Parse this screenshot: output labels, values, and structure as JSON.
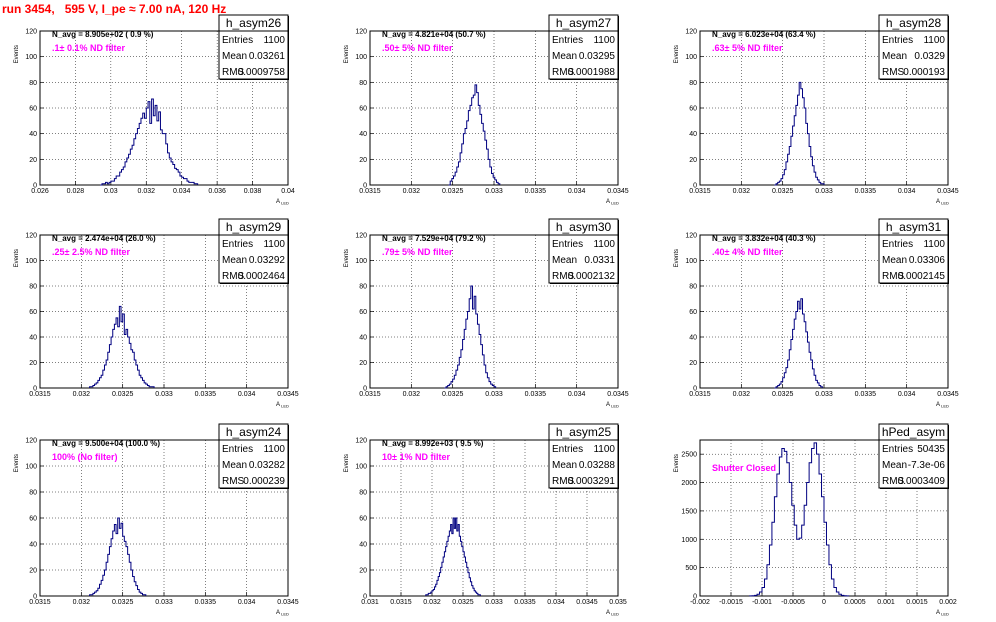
{
  "title": "run 3454,   595 V, I_pe ≈ 7.00 nA, 120 Hz",
  "stat_labels": {
    "entries": "Entries",
    "mean": "Mean",
    "rms": "RMS"
  },
  "xlabel": "A",
  "xlabel_sub": "LED",
  "ylabel": "Events",
  "colors": {
    "title": "#ff0000",
    "histogram": "#000080",
    "filter_text": "#ff00ff"
  },
  "grid": true,
  "chart_data": [
    {
      "type": "histogram",
      "name": "h_asym26",
      "entries": "1100",
      "mean": "0.03261",
      "rms": "0.0009758",
      "n_avg": "N_avg = 8.905e+02 ( 0.9 %)",
      "filter": ".1± 0.1% ND filter",
      "xlim": [
        0.026,
        0.04
      ],
      "ylim": [
        0,
        120
      ],
      "xticks": [
        "0.026",
        "0.028",
        "0.03",
        "0.032",
        "0.034",
        "0.036",
        "0.038",
        "0.04"
      ],
      "yticks": [
        "0",
        "20",
        "40",
        "60",
        "80",
        "100",
        "120"
      ],
      "bin_start": 0.0294,
      "bin_width": 0.0001,
      "counts": [
        0,
        1,
        1,
        2,
        1,
        2,
        3,
        3,
        5,
        7,
        7,
        10,
        12,
        14,
        18,
        21,
        24,
        28,
        31,
        36,
        40,
        44,
        48,
        52,
        56,
        52,
        60,
        65,
        48,
        67,
        54,
        62,
        50,
        57,
        43,
        40,
        40,
        32,
        25,
        21,
        18,
        16,
        13,
        12,
        10,
        7,
        6,
        5,
        5,
        3,
        2,
        2,
        2,
        1,
        1
      ]
    },
    {
      "type": "histogram",
      "name": "h_asym27",
      "entries": "1100",
      "mean": "0.03295",
      "rms": "0.0001988",
      "n_avg": "N_avg = 4.821e+04 (50.7 %)",
      "filter": ".50± 5% ND filter",
      "xlim": [
        0.0315,
        0.0345
      ],
      "ylim": [
        0,
        120
      ],
      "xticks": [
        "0.0315",
        "0.032",
        "0.0325",
        "0.033",
        "0.0335",
        "0.034",
        "0.0345"
      ],
      "yticks": [
        "0",
        "20",
        "40",
        "60",
        "80",
        "100",
        "120"
      ],
      "bin_start": 0.03245,
      "bin_width": 2e-05,
      "counts": [
        0,
        3,
        5,
        7,
        10,
        14,
        18,
        25,
        32,
        40,
        44,
        50,
        58,
        62,
        68,
        70,
        78,
        72,
        62,
        55,
        48,
        42,
        35,
        28,
        20,
        14,
        9,
        6,
        4,
        2,
        1
      ]
    },
    {
      "type": "histogram",
      "name": "h_asym28",
      "entries": "1100",
      "mean": "0.0329",
      "rms": "0.000193",
      "n_avg": "N_avg = 6.023e+04 (63.4 %)",
      "filter": ".63± 5% ND filter",
      "xlim": [
        0.0315,
        0.0345
      ],
      "ylim": [
        0,
        120
      ],
      "xticks": [
        "0.0315",
        "0.032",
        "0.0325",
        "0.033",
        "0.0335",
        "0.034",
        "0.0345"
      ],
      "yticks": [
        "0",
        "20",
        "40",
        "60",
        "80",
        "100",
        "120"
      ],
      "bin_start": 0.0324,
      "bin_width": 2e-05,
      "counts": [
        0,
        1,
        2,
        3,
        5,
        8,
        12,
        18,
        24,
        30,
        38,
        46,
        54,
        62,
        70,
        80,
        75,
        68,
        60,
        48,
        40,
        30,
        22,
        15,
        10,
        6,
        4,
        2,
        1,
        1
      ]
    },
    {
      "type": "histogram",
      "name": "h_asym29",
      "entries": "1100",
      "mean": "0.03292",
      "rms": "0.0002464",
      "n_avg": "N_avg = 2.474e+04 (26.0 %)",
      "filter": ".25± 2.5% ND filter",
      "xlim": [
        0.0315,
        0.0345
      ],
      "ylim": [
        0,
        120
      ],
      "xticks": [
        "0.0315",
        "0.032",
        "0.0325",
        "0.033",
        "0.0335",
        "0.034",
        "0.0345"
      ],
      "yticks": [
        "0",
        "20",
        "40",
        "60",
        "80",
        "100",
        "120"
      ],
      "bin_start": 0.0321,
      "bin_width": 2e-05,
      "counts": [
        1,
        1,
        2,
        3,
        4,
        6,
        8,
        10,
        14,
        18,
        22,
        28,
        34,
        40,
        46,
        50,
        55,
        48,
        64,
        52,
        58,
        42,
        46,
        40,
        35,
        30,
        28,
        22,
        18,
        14,
        10,
        8,
        6,
        4,
        3,
        2,
        1,
        1,
        1
      ]
    },
    {
      "type": "histogram",
      "name": "h_asym30",
      "entries": "1100",
      "mean": "0.0331",
      "rms": "0.0002132",
      "n_avg": "N_avg = 7.529e+04 (79.2 %)",
      "filter": ".79± 5% ND filter",
      "xlim": [
        0.0315,
        0.0345
      ],
      "ylim": [
        0,
        120
      ],
      "xticks": [
        "0.0315",
        "0.032",
        "0.0325",
        "0.033",
        "0.0335",
        "0.034",
        "0.0345"
      ],
      "yticks": [
        "0",
        "20",
        "40",
        "60",
        "80",
        "100",
        "120"
      ],
      "bin_start": 0.0324,
      "bin_width": 2e-05,
      "counts": [
        0,
        1,
        2,
        3,
        5,
        7,
        10,
        14,
        18,
        24,
        30,
        38,
        46,
        54,
        60,
        70,
        80,
        62,
        72,
        58,
        50,
        42,
        34,
        26,
        18,
        12,
        8,
        5,
        3,
        2,
        1
      ]
    },
    {
      "type": "histogram",
      "name": "h_asym31",
      "entries": "1100",
      "mean": "0.03306",
      "rms": "0.0002145",
      "n_avg": "N_avg = 3.832e+04 (40.3 %)",
      "filter": ".40± 4% ND filter",
      "xlim": [
        0.0315,
        0.0345
      ],
      "ylim": [
        0,
        120
      ],
      "xticks": [
        "0.0315",
        "0.032",
        "0.0325",
        "0.033",
        "0.0335",
        "0.034",
        "0.0345"
      ],
      "yticks": [
        "0",
        "20",
        "40",
        "60",
        "80",
        "100",
        "120"
      ],
      "bin_start": 0.0324,
      "bin_width": 2e-05,
      "counts": [
        0,
        1,
        2,
        3,
        5,
        8,
        12,
        16,
        22,
        30,
        38,
        46,
        54,
        60,
        68,
        62,
        70,
        58,
        52,
        44,
        36,
        28,
        22,
        15,
        10,
        6,
        4,
        2,
        1
      ]
    },
    {
      "type": "histogram",
      "name": "h_asym24",
      "entries": "1100",
      "mean": "0.03282",
      "rms": "0.000239",
      "n_avg": "N_avg = 9.500e+04 (100.0 %)",
      "filter": "100% (No filter)",
      "xlim": [
        0.0315,
        0.0345
      ],
      "ylim": [
        0,
        120
      ],
      "xticks": [
        "0.0315",
        "0.032",
        "0.0325",
        "0.033",
        "0.0335",
        "0.034",
        "0.0345"
      ],
      "yticks": [
        "0",
        "20",
        "40",
        "60",
        "80",
        "100",
        "120"
      ],
      "bin_start": 0.0321,
      "bin_width": 2e-05,
      "counts": [
        1,
        1,
        2,
        3,
        4,
        6,
        9,
        12,
        16,
        20,
        26,
        32,
        38,
        44,
        50,
        55,
        48,
        60,
        52,
        56,
        46,
        42,
        38,
        32,
        26,
        20,
        15,
        11,
        8,
        5,
        3,
        2,
        1,
        1
      ]
    },
    {
      "type": "histogram",
      "name": "h_asym25",
      "entries": "1100",
      "mean": "0.03288",
      "rms": "0.0003291",
      "n_avg": "N_avg = 8.992e+03 ( 9.5 %)",
      "filter": "10± 1% ND filter",
      "xlim": [
        0.031,
        0.035
      ],
      "ylim": [
        0,
        120
      ],
      "xticks": [
        "0.031",
        "0.0315",
        "0.032",
        "0.0325",
        "0.033",
        "0.0335",
        "0.034",
        "0.0345",
        "0.035"
      ],
      "yticks": [
        "0",
        "20",
        "40",
        "60",
        "80",
        "100",
        "120"
      ],
      "bin_start": 0.0319,
      "bin_width": 2e-05,
      "counts": [
        1,
        1,
        2,
        2,
        3,
        4,
        5,
        7,
        9,
        12,
        15,
        18,
        22,
        26,
        30,
        34,
        38,
        42,
        46,
        50,
        55,
        48,
        60,
        52,
        60,
        50,
        55,
        46,
        42,
        38,
        34,
        30,
        26,
        22,
        18,
        14,
        11,
        8,
        6,
        4,
        3,
        2,
        1,
        1
      ]
    },
    {
      "type": "histogram",
      "name": "hPed_asym",
      "entries": "50435",
      "mean": "-7.3e-06",
      "rms": "0.0003409",
      "n_avg": "",
      "filter": "Shutter Closed",
      "xlim": [
        -0.002,
        0.002
      ],
      "ylim": [
        0,
        2750
      ],
      "xticks": [
        "-0.002",
        "-0.0015",
        "-0.001",
        "-0.0005",
        "0",
        "0.0005",
        "0.001",
        "0.0015",
        "0.002"
      ],
      "yticks": [
        "0",
        "500",
        "1000",
        "1500",
        "2000",
        "2500"
      ],
      "bin_start": -0.0012,
      "bin_width": 4e-05,
      "counts": [
        2,
        5,
        12,
        30,
        70,
        150,
        300,
        550,
        900,
        1300,
        1750,
        2150,
        2450,
        2600,
        2550,
        2350,
        2000,
        1600,
        1250,
        1000,
        1020,
        1250,
        1600,
        2000,
        2350,
        2600,
        2700,
        2500,
        2150,
        1750,
        1300,
        900,
        550,
        300,
        150,
        70,
        30,
        12,
        5,
        2
      ]
    }
  ]
}
